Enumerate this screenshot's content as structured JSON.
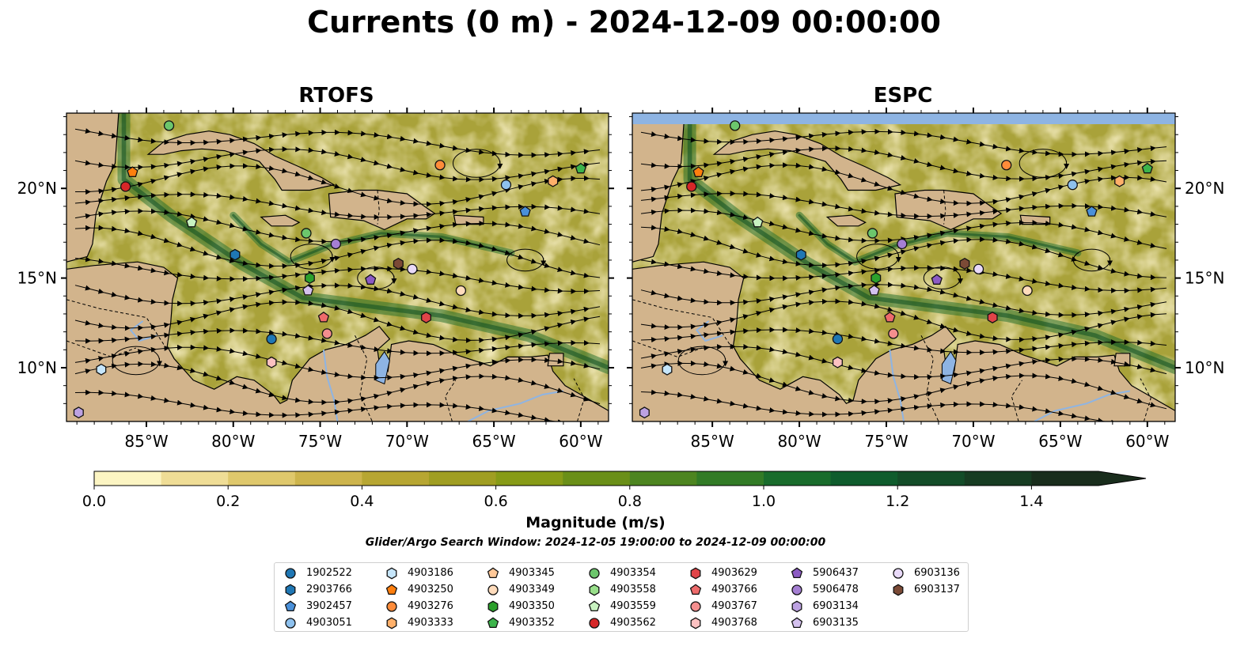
{
  "title": "Currents (0 m) - 2024-12-09 00:00:00",
  "panels": [
    {
      "title": "RTOFS",
      "top_band": false
    },
    {
      "title": "ESPC",
      "top_band": true
    }
  ],
  "axes": {
    "x_ticks": [
      "85°W",
      "80°W",
      "75°W",
      "70°W",
      "65°W",
      "60°W"
    ],
    "x_values": [
      -85,
      -80,
      -75,
      -70,
      -65,
      -60
    ],
    "y_ticks": [
      "20°N",
      "15°N",
      "10°N"
    ],
    "y_values": [
      20,
      15,
      10
    ],
    "lon_range": [
      -89.6,
      -58.4
    ],
    "lat_range": [
      7.0,
      24.2
    ]
  },
  "colorbar": {
    "label": "Magnitude (m/s)",
    "ticks": [
      "0.0",
      "0.2",
      "0.4",
      "0.6",
      "0.8",
      "1.0",
      "1.2",
      "1.4"
    ],
    "tick_values": [
      0,
      0.2,
      0.4,
      0.6,
      0.8,
      1.0,
      1.2,
      1.4
    ],
    "range": [
      0,
      1.5
    ],
    "extend": "max",
    "colors": [
      "#fcf5c3",
      "#efdd96",
      "#dfc86c",
      "#cdb44c",
      "#b7a632",
      "#a09e22",
      "#879b17",
      "#6a8f18",
      "#4d8520",
      "#327b26",
      "#196c2c",
      "#0f5c2d",
      "#134c28",
      "#173c22",
      "#192d1c"
    ]
  },
  "search_window": "Glider/Argo Search Window: 2024-12-05 19:00:00 to 2024-12-09 00:00:00",
  "floats": [
    {
      "id": "1902522",
      "marker": "circle",
      "color": "#1f77b4"
    },
    {
      "id": "2903766",
      "marker": "hexagon",
      "color": "#1f77b4"
    },
    {
      "id": "3902457",
      "marker": "pentagon",
      "color": "#4a90d9"
    },
    {
      "id": "4903051",
      "marker": "circle",
      "color": "#8ec1ee"
    },
    {
      "id": "4903186",
      "marker": "hexagon",
      "color": "#c6e6fb"
    },
    {
      "id": "4903250",
      "marker": "pentagon",
      "color": "#ff7f0e"
    },
    {
      "id": "4903276",
      "marker": "circle",
      "color": "#ff8c3a"
    },
    {
      "id": "4903333",
      "marker": "hexagon",
      "color": "#ffb06a"
    },
    {
      "id": "4903345",
      "marker": "pentagon",
      "color": "#ffc898"
    },
    {
      "id": "4903349",
      "marker": "circle",
      "color": "#ffdcbc"
    },
    {
      "id": "4903350",
      "marker": "hexagon",
      "color": "#2ca02c"
    },
    {
      "id": "4903352",
      "marker": "pentagon",
      "color": "#3cb44b"
    },
    {
      "id": "4903354",
      "marker": "circle",
      "color": "#6cc66c"
    },
    {
      "id": "4903558",
      "marker": "hexagon",
      "color": "#98df8a"
    },
    {
      "id": "4903559",
      "marker": "pentagon",
      "color": "#c8f2c0"
    },
    {
      "id": "4903562",
      "marker": "circle",
      "color": "#d62728"
    },
    {
      "id": "4903629",
      "marker": "hexagon",
      "color": "#e04448"
    },
    {
      "id": "4903766",
      "marker": "pentagon",
      "color": "#ee6b6b"
    },
    {
      "id": "4903767",
      "marker": "circle",
      "color": "#f48e8e"
    },
    {
      "id": "4903768",
      "marker": "hexagon",
      "color": "#fcc1c1"
    },
    {
      "id": "5906437",
      "marker": "pentagon",
      "color": "#8c5bc4"
    },
    {
      "id": "5906478",
      "marker": "circle",
      "color": "#a57fd3"
    },
    {
      "id": "6903134",
      "marker": "hexagon",
      "color": "#bda2e2"
    },
    {
      "id": "6903135",
      "marker": "pentagon",
      "color": "#d4c1ef"
    },
    {
      "id": "6903136",
      "marker": "circle",
      "color": "#e9daf9"
    },
    {
      "id": "6903137",
      "marker": "hexagon",
      "color": "#7b4a36"
    }
  ],
  "float_positions": [
    {
      "id": "4903354",
      "lon": -83.7,
      "lat": 23.5
    },
    {
      "id": "4903250",
      "lon": -85.8,
      "lat": 20.9
    },
    {
      "id": "4903562",
      "lon": -86.2,
      "lat": 20.1
    },
    {
      "id": "4903276",
      "lon": -68.1,
      "lat": 21.3
    },
    {
      "id": "4903051",
      "lon": -64.3,
      "lat": 20.2
    },
    {
      "id": "4903333",
      "lon": -61.6,
      "lat": 20.4
    },
    {
      "id": "4903352",
      "lon": -60.0,
      "lat": 21.1
    },
    {
      "id": "3902457",
      "lon": -63.2,
      "lat": 18.7
    },
    {
      "id": "4903559",
      "lon": -82.4,
      "lat": 18.1
    },
    {
      "id": "4903354",
      "lon": -75.8,
      "lat": 17.5
    },
    {
      "id": "5906478",
      "lon": -74.1,
      "lat": 16.9
    },
    {
      "id": "2903766",
      "lon": -79.9,
      "lat": 16.3
    },
    {
      "id": "6903137",
      "lon": -70.5,
      "lat": 15.8
    },
    {
      "id": "6903136",
      "lon": -69.7,
      "lat": 15.5
    },
    {
      "id": "4903350",
      "lon": -75.6,
      "lat": 15.0
    },
    {
      "id": "5906437",
      "lon": -72.1,
      "lat": 14.9
    },
    {
      "id": "6903135",
      "lon": -75.7,
      "lat": 14.3
    },
    {
      "id": "4903349",
      "lon": -66.9,
      "lat": 14.3
    },
    {
      "id": "4903766",
      "lon": -74.8,
      "lat": 12.8
    },
    {
      "id": "4903629",
      "lon": -68.9,
      "lat": 12.8
    },
    {
      "id": "4903767",
      "lon": -74.6,
      "lat": 11.9
    },
    {
      "id": "1902522",
      "lon": -77.8,
      "lat": 11.6
    },
    {
      "id": "4903768",
      "lon": -77.8,
      "lat": 10.3
    },
    {
      "id": "4903186",
      "lon": -87.6,
      "lat": 9.9
    },
    {
      "id": "6903134",
      "lon": -88.9,
      "lat": 7.5
    }
  ]
}
